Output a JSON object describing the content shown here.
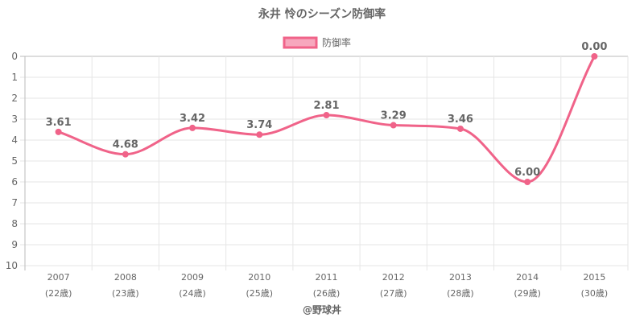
{
  "chart_data": {
    "type": "line",
    "title": "永井 怜のシーズン防御率",
    "legend": {
      "label": "防御率",
      "placement": "top"
    },
    "categories": [
      "2007",
      "2008",
      "2009",
      "2010",
      "2011",
      "2012",
      "2013",
      "2014",
      "2015"
    ],
    "age_labels": [
      "(22歳)",
      "(23歳)",
      "(24歳)",
      "(25歳)",
      "(26歳)",
      "(27歳)",
      "(28歳)",
      "(29歳)",
      "(30歳)"
    ],
    "series": [
      {
        "name": "防御率",
        "values": [
          3.61,
          4.68,
          3.42,
          3.74,
          2.81,
          3.29,
          3.46,
          6.0,
          0.0
        ],
        "labels": [
          "3.61",
          "4.68",
          "3.42",
          "3.74",
          "2.81",
          "3.29",
          "3.46",
          "6.00",
          "0.00"
        ],
        "color": "#f06389"
      }
    ],
    "y_ticks": [
      "0",
      "1",
      "2",
      "3",
      "4",
      "5",
      "6",
      "7",
      "8",
      "9",
      "10"
    ],
    "ylim": [
      0,
      10
    ],
    "y_reversed": true,
    "grid": true,
    "credit": "@野球丼"
  }
}
